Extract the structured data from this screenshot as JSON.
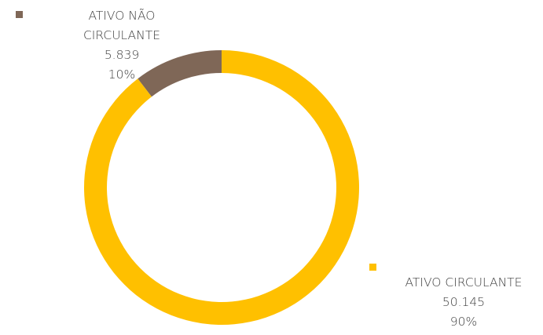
{
  "chart_data": {
    "type": "donut",
    "categories": [
      "ATIVO CIRCULANTE",
      "ATIVO NÃO CIRCULANTE"
    ],
    "values": [
      50145,
      5839
    ],
    "value_labels": [
      "50.145",
      "5.839"
    ],
    "percent_labels": [
      "90%",
      "10%"
    ],
    "colors": [
      "#FFC000",
      "#7F6757"
    ]
  }
}
